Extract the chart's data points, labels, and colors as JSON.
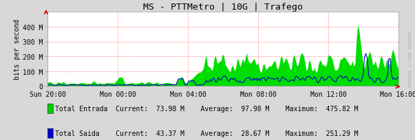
{
  "title": "MS - PTTMetro | 10G | Trafego",
  "ylabel": "bits per second",
  "background_color": "#d8d8d8",
  "plot_bg_color": "#ffffff",
  "grid_color": "#ff9090",
  "ylim": [
    0,
    500000000
  ],
  "yticks": [
    0,
    100000000,
    200000000,
    300000000,
    400000000
  ],
  "ytick_labels": [
    "0",
    "100 M",
    "200 M",
    "300 M",
    "400 M"
  ],
  "xtick_labels": [
    "Sun 20:00",
    "Mon 00:00",
    "Mon 04:00",
    "Mon 08:00",
    "Mon 12:00",
    "Mon 16:00"
  ],
  "entrada_color": "#00dd00",
  "saida_color": "#0000cc",
  "title_fontsize": 9.5,
  "axis_fontsize": 7,
  "legend_fontsize": 7,
  "watermark": "RRDTOOL / TOBI OETIKER",
  "arrow_color": "#cc0000",
  "legend": [
    {
      "label": "Total Entrada",
      "current": "73.98 M",
      "average": "97.98 M",
      "maximum": "475.82 M",
      "color": "#00cc00"
    },
    {
      "label": "Total Saida",
      "current": "43.37 M",
      "average": "28.67 M",
      "maximum": "251.29 M",
      "color": "#0000cc"
    }
  ]
}
